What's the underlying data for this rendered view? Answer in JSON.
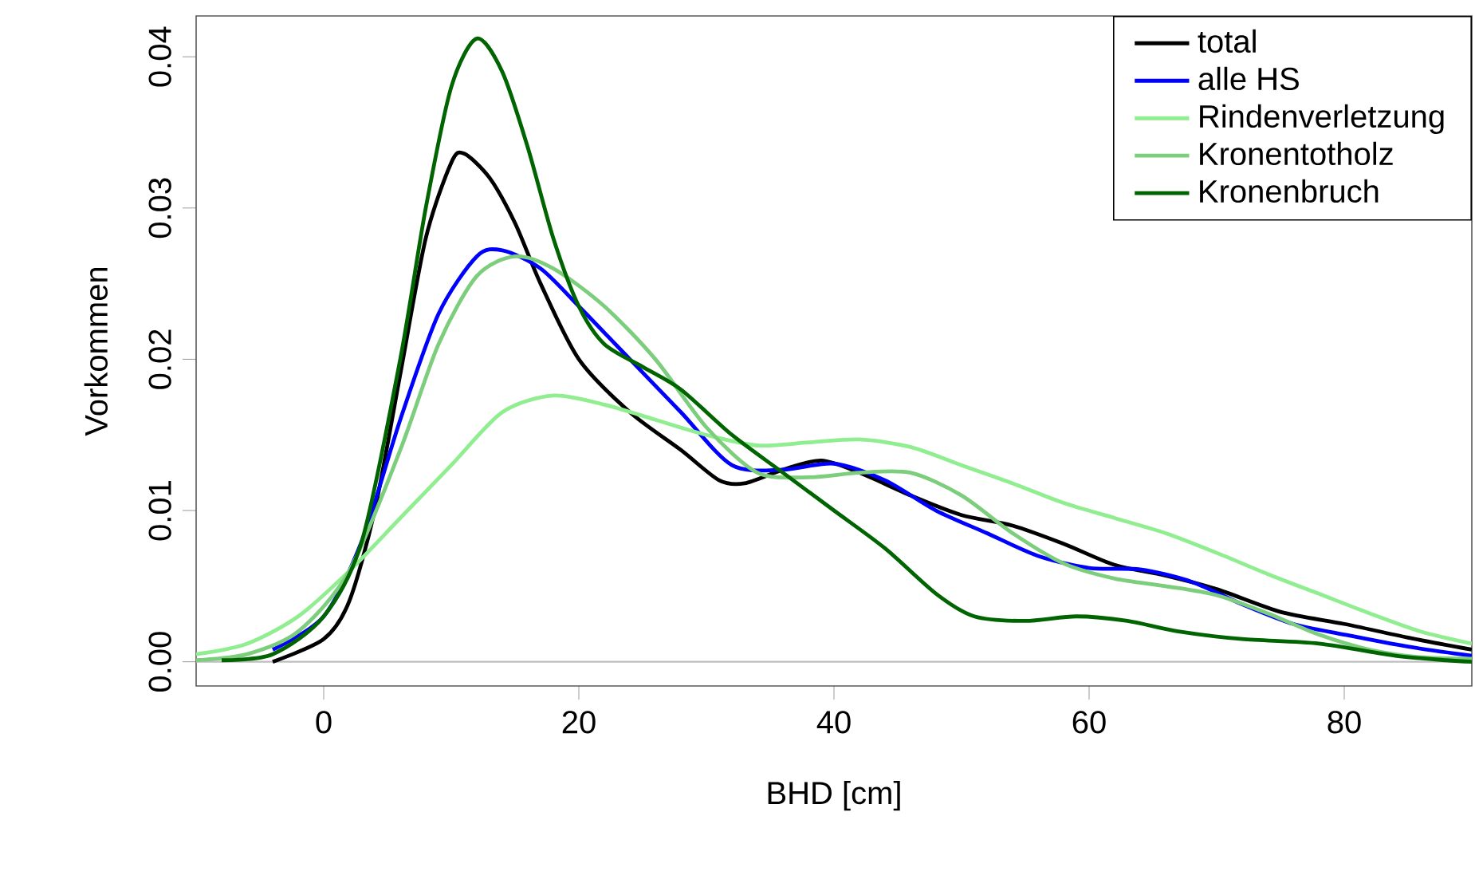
{
  "chart_data": {
    "type": "line",
    "xlabel": "BHD [cm]",
    "ylabel": "Vorkommen",
    "xlim": [
      -10,
      90
    ],
    "ylim": [
      -0.0016,
      0.0427
    ],
    "xticks": [
      0,
      20,
      40,
      60,
      80
    ],
    "yticks": [
      {
        "value": 0,
        "label": "0.00"
      },
      {
        "value": 0.01,
        "label": "0.01"
      },
      {
        "value": 0.02,
        "label": "0.02"
      },
      {
        "value": 0.03,
        "label": "0.03"
      },
      {
        "value": 0.04,
        "label": "0.04"
      }
    ],
    "legend": "top right",
    "line_style": "solid",
    "marker": "none",
    "ref_lines": [
      {
        "axis": "y",
        "value": 0,
        "color": "#bebebe"
      }
    ],
    "series": [
      {
        "name": "total",
        "color": "#000000",
        "x": [
          -4,
          0,
          2,
          4,
          6,
          8,
          10,
          11,
          13,
          15,
          17,
          20,
          24,
          28,
          31,
          33,
          36,
          39,
          42,
          46,
          50,
          54,
          58,
          62,
          66,
          70,
          75,
          80,
          85,
          90
        ],
        "values": [
          0,
          0.0015,
          0.004,
          0.01,
          0.019,
          0.028,
          0.033,
          0.0336,
          0.032,
          0.029,
          0.025,
          0.02,
          0.0165,
          0.014,
          0.012,
          0.0118,
          0.0127,
          0.0133,
          0.0125,
          0.011,
          0.0097,
          0.009,
          0.0078,
          0.0064,
          0.0057,
          0.0048,
          0.0033,
          0.0025,
          0.0016,
          0.0008
        ]
      },
      {
        "name": "alle HS",
        "color": "#0000ff",
        "x": [
          -4,
          0,
          3,
          6,
          9,
          12,
          14,
          17,
          20,
          24,
          28,
          32,
          36,
          40,
          44,
          48,
          52,
          56,
          60,
          64,
          68,
          72,
          76,
          80,
          85,
          90
        ],
        "values": [
          0.0008,
          0.003,
          0.008,
          0.016,
          0.023,
          0.0268,
          0.0272,
          0.026,
          0.0235,
          0.02,
          0.0165,
          0.013,
          0.0127,
          0.0131,
          0.012,
          0.01,
          0.0085,
          0.007,
          0.0062,
          0.0061,
          0.0053,
          0.0038,
          0.0025,
          0.0018,
          0.001,
          0.0004
        ]
      },
      {
        "name": "Rindenverletzung",
        "color": "#90ee90",
        "x": [
          -10,
          -6,
          -2,
          2,
          6,
          10,
          14,
          18,
          22,
          26,
          30,
          34,
          38,
          42,
          46,
          50,
          54,
          58,
          62,
          66,
          70,
          74,
          78,
          82,
          86,
          90
        ],
        "values": [
          0.0005,
          0.0012,
          0.003,
          0.006,
          0.0095,
          0.013,
          0.0165,
          0.0176,
          0.017,
          0.016,
          0.015,
          0.0143,
          0.0145,
          0.0147,
          0.0142,
          0.013,
          0.0118,
          0.0105,
          0.0095,
          0.0085,
          0.0072,
          0.0058,
          0.0045,
          0.0032,
          0.002,
          0.0012
        ]
      },
      {
        "name": "Kronentotholz",
        "color": "#7ccd7c",
        "x": [
          -10,
          -6,
          -2,
          2,
          6,
          9,
          12,
          15,
          18,
          22,
          26,
          30,
          34,
          38,
          42,
          46,
          50,
          54,
          58,
          62,
          66,
          70,
          74,
          78,
          82,
          86,
          90
        ],
        "values": [
          0.0001,
          0.0005,
          0.002,
          0.006,
          0.014,
          0.021,
          0.0255,
          0.0268,
          0.026,
          0.0235,
          0.02,
          0.0155,
          0.0125,
          0.0122,
          0.0125,
          0.0125,
          0.011,
          0.0085,
          0.0065,
          0.0055,
          0.005,
          0.0044,
          0.0032,
          0.0018,
          0.0008,
          0.0003,
          0.0002
        ]
      },
      {
        "name": "Kronenbruch",
        "color": "#006400",
        "x": [
          -8,
          -4,
          0,
          3,
          6,
          8,
          10,
          12,
          14,
          16,
          18,
          20,
          22,
          25,
          28,
          32,
          36,
          40,
          44,
          48,
          51,
          55,
          59,
          63,
          67,
          72,
          78,
          84,
          88,
          90
        ],
        "values": [
          0.0001,
          0.0005,
          0.003,
          0.008,
          0.02,
          0.03,
          0.038,
          0.0412,
          0.039,
          0.034,
          0.028,
          0.0235,
          0.021,
          0.0195,
          0.018,
          0.015,
          0.0125,
          0.01,
          0.0075,
          0.0045,
          0.003,
          0.0027,
          0.003,
          0.0027,
          0.002,
          0.0015,
          0.0012,
          0.0004,
          0.0001,
          0
        ]
      }
    ]
  }
}
